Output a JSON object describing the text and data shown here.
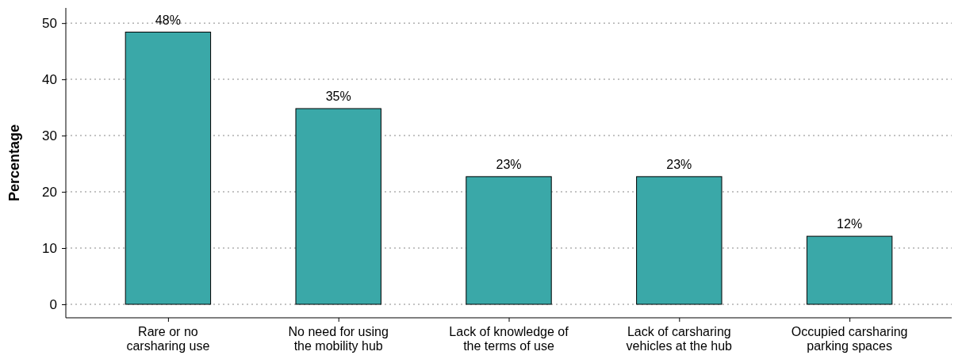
{
  "chart_data": {
    "type": "bar",
    "ylabel": "Percentage",
    "categories": [
      "Rare or no\ncarsharing use",
      "No need for using\nthe mobility hub",
      "Lack of knowledge of\nthe terms of use",
      "Lack of carsharing\nvehicles at the hub",
      "Occupied carsharing\nparking spaces"
    ],
    "values": [
      48.4,
      34.8,
      22.7,
      22.7,
      12.1
    ],
    "value_labels": [
      "48%",
      "35%",
      "23%",
      "23%",
      "12%"
    ],
    "color": "#3aa8a8",
    "ylim": [
      -2.4,
      52.7
    ],
    "yticks": [
      0,
      10,
      20,
      30,
      40,
      50
    ],
    "grid": "y"
  }
}
